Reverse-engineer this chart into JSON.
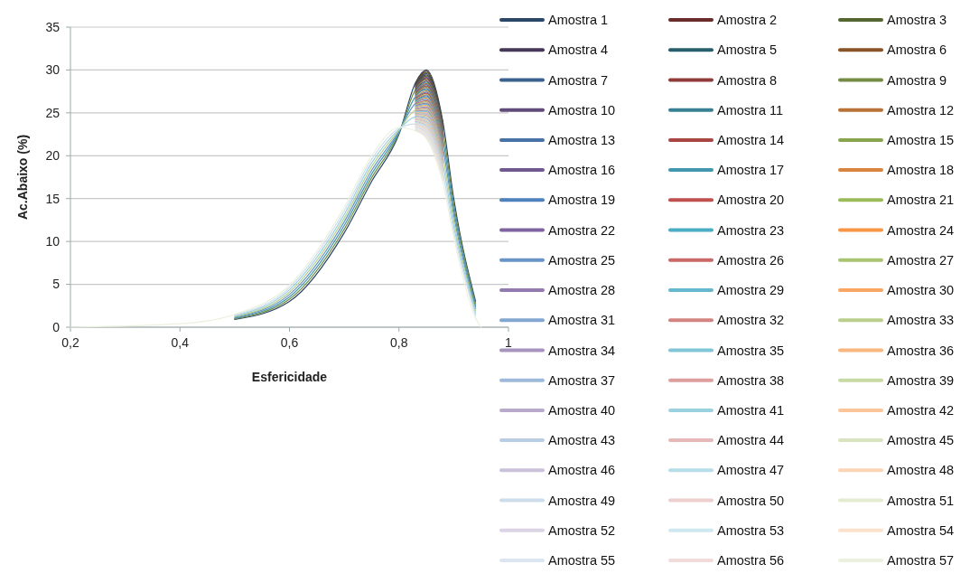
{
  "chart_data": {
    "type": "line",
    "xlabel": "Esfericidade",
    "ylabel": "Ac.Abaixo (%)",
    "x": [
      0.2,
      0.4,
      0.5,
      0.6,
      0.7,
      0.75,
      0.8,
      0.83,
      0.85,
      0.88,
      0.9,
      0.94,
      0.95
    ],
    "xlim": [
      0.2,
      1
    ],
    "xticks": [
      {
        "value": 0.2,
        "label": "0,2"
      },
      {
        "value": 0.4,
        "label": "0,4"
      },
      {
        "value": 0.6,
        "label": "0,6"
      },
      {
        "value": 0.8,
        "label": "0,8"
      },
      1
    ],
    "ylim": [
      0,
      35
    ],
    "yticks": [
      0,
      5,
      10,
      15,
      20,
      25,
      30,
      35
    ],
    "grid": "y",
    "legend": "right",
    "marker": "none",
    "line_style": "solid",
    "series": [
      {
        "name": "Amostra 1",
        "color": "#2b4768",
        "values": [
          null,
          null,
          0.9,
          3,
          11,
          17,
          22.5,
          28.5,
          30,
          24,
          15,
          3,
          null
        ]
      },
      {
        "name": "Amostra 2",
        "color": "#6a2c2a",
        "values": [
          null,
          null,
          null,
          null,
          null,
          null,
          null,
          28.4,
          29.86,
          23.88,
          null,
          null,
          null
        ]
      },
      {
        "name": "Amostra 3",
        "color": "#556731",
        "values": [
          null,
          null,
          null,
          null,
          null,
          null,
          null,
          28.3,
          29.71,
          23.75,
          null,
          null,
          null
        ]
      },
      {
        "name": "Amostra 4",
        "color": "#463759",
        "values": [
          null,
          null,
          null,
          null,
          null,
          null,
          null,
          28.2,
          29.57,
          23.63,
          null,
          null,
          null
        ]
      },
      {
        "name": "Amostra 5",
        "color": "#295f6d",
        "values": [
          null,
          null,
          null,
          null,
          null,
          null,
          null,
          28.1,
          29.43,
          23.5,
          null,
          null,
          null
        ]
      },
      {
        "name": "Amostra 6",
        "color": "#885327",
        "values": [
          null,
          null,
          null,
          null,
          null,
          null,
          null,
          28,
          29.29,
          23.38,
          null,
          null,
          null
        ]
      },
      {
        "name": "Amostra 7",
        "color": "#3b618e",
        "values": [
          null,
          null,
          null,
          null,
          null,
          null,
          null,
          27.9,
          29.14,
          23.25,
          null,
          null,
          null
        ]
      },
      {
        "name": "Amostra 8",
        "color": "#903c3a",
        "values": [
          null,
          null,
          null,
          null,
          null,
          null,
          null,
          27.8,
          29,
          23.13,
          null,
          null,
          null
        ]
      },
      {
        "name": "Amostra 9",
        "color": "#748c43",
        "values": [
          null,
          null,
          0.99,
          3.27,
          11.43,
          17.43,
          22.61,
          27.7,
          28.86,
          23,
          14.36,
          2.72,
          null
        ]
      },
      {
        "name": "Amostra 10",
        "color": "#604b7a",
        "values": [
          null,
          null,
          null,
          null,
          null,
          null,
          null,
          27.6,
          28.71,
          22.88,
          null,
          null,
          null
        ]
      },
      {
        "name": "Amostra 11",
        "color": "#388195",
        "values": [
          null,
          null,
          null,
          null,
          null,
          null,
          null,
          27.5,
          28.57,
          22.75,
          null,
          null,
          null
        ]
      },
      {
        "name": "Amostra 12",
        "color": "#b97135",
        "values": [
          null,
          null,
          null,
          null,
          null,
          null,
          null,
          27.4,
          28.43,
          22.63,
          null,
          null,
          null
        ]
      },
      {
        "name": "Amostra 13",
        "color": "#4672a6",
        "values": [
          null,
          null,
          null,
          null,
          null,
          null,
          null,
          27.3,
          28.29,
          22.5,
          null,
          null,
          null
        ]
      },
      {
        "name": "Amostra 14",
        "color": "#a94644",
        "values": [
          null,
          null,
          null,
          null,
          null,
          null,
          null,
          27.2,
          28.14,
          22.38,
          null,
          null,
          null
        ]
      },
      {
        "name": "Amostra 15",
        "color": "#88a54e",
        "values": [
          null,
          null,
          null,
          null,
          null,
          null,
          null,
          27.1,
          28,
          22.25,
          null,
          null,
          null
        ]
      },
      {
        "name": "Amostra 16",
        "color": "#71588f",
        "values": [
          null,
          null,
          null,
          null,
          null,
          null,
          null,
          27,
          27.86,
          22.13,
          null,
          null,
          null
        ]
      },
      {
        "name": "Amostra 17",
        "color": "#4297ae",
        "values": [
          null,
          null,
          1.07,
          3.54,
          11.86,
          17.86,
          22.73,
          26.9,
          27.71,
          22,
          13.72,
          2.44,
          null
        ]
      },
      {
        "name": "Amostra 18",
        "color": "#d9843e",
        "values": [
          null,
          null,
          null,
          null,
          null,
          null,
          null,
          26.8,
          27.57,
          21.88,
          null,
          null,
          null
        ]
      },
      {
        "name": "Amostra 19",
        "color": "#4f81bd",
        "values": [
          null,
          null,
          null,
          null,
          null,
          null,
          null,
          26.7,
          27.43,
          21.75,
          null,
          null,
          null
        ]
      },
      {
        "name": "Amostra 20",
        "color": "#c0504d",
        "values": [
          null,
          null,
          null,
          null,
          null,
          null,
          null,
          26.6,
          27.29,
          21.63,
          null,
          null,
          null
        ]
      },
      {
        "name": "Amostra 21",
        "color": "#9bbb59",
        "values": [
          null,
          null,
          null,
          null,
          null,
          null,
          null,
          26.5,
          27.14,
          21.5,
          null,
          null,
          null
        ]
      },
      {
        "name": "Amostra 22",
        "color": "#8064a2",
        "values": [
          null,
          null,
          null,
          null,
          null,
          null,
          null,
          26.4,
          27,
          21.38,
          null,
          null,
          null
        ]
      },
      {
        "name": "Amostra 23",
        "color": "#4bacc6",
        "values": [
          null,
          null,
          null,
          null,
          null,
          null,
          null,
          26.3,
          26.86,
          21.25,
          null,
          null,
          null
        ]
      },
      {
        "name": "Amostra 24",
        "color": "#f79646",
        "values": [
          null,
          null,
          null,
          null,
          null,
          null,
          null,
          26.2,
          26.71,
          21.13,
          null,
          null,
          null
        ]
      },
      {
        "name": "Amostra 25",
        "color": "#6994c7",
        "values": [
          null,
          null,
          1.16,
          3.81,
          12.29,
          18.29,
          22.84,
          26.1,
          26.57,
          21,
          13.08,
          2.16,
          null
        ]
      },
      {
        "name": "Amostra 26",
        "color": "#c96a68",
        "values": [
          null,
          null,
          null,
          null,
          null,
          null,
          null,
          26,
          26.43,
          20.88,
          null,
          null,
          null
        ]
      },
      {
        "name": "Amostra 27",
        "color": "#aac572",
        "values": [
          null,
          null,
          null,
          null,
          null,
          null,
          null,
          25.9,
          26.29,
          20.75,
          null,
          null,
          null
        ]
      },
      {
        "name": "Amostra 28",
        "color": "#937bb0",
        "values": [
          null,
          null,
          null,
          null,
          null,
          null,
          null,
          25.8,
          26.14,
          20.63,
          null,
          null,
          null
        ]
      },
      {
        "name": "Amostra 29",
        "color": "#66b8cf",
        "values": [
          null,
          null,
          null,
          null,
          null,
          null,
          null,
          25.7,
          26,
          20.5,
          null,
          null,
          null
        ]
      },
      {
        "name": "Amostra 30",
        "color": "#f8a662",
        "values": [
          null,
          null,
          null,
          null,
          null,
          null,
          null,
          25.6,
          25.86,
          20.38,
          null,
          null,
          null
        ]
      },
      {
        "name": "Amostra 31",
        "color": "#84a7d1",
        "values": [
          null,
          null,
          null,
          null,
          null,
          null,
          null,
          25.5,
          25.71,
          20.25,
          null,
          null,
          null
        ]
      },
      {
        "name": "Amostra 32",
        "color": "#d38582",
        "values": [
          null,
          null,
          null,
          null,
          null,
          null,
          null,
          25.4,
          25.57,
          20.13,
          null,
          null,
          null
        ]
      },
      {
        "name": "Amostra 33",
        "color": "#b9cf8b",
        "values": [
          null,
          null,
          1.24,
          4.08,
          12.72,
          18.72,
          22.96,
          25.3,
          25.43,
          20,
          12.44,
          1.88,
          null
        ]
      },
      {
        "name": "Amostra 34",
        "color": "#a693be",
        "values": [
          null,
          null,
          null,
          null,
          null,
          null,
          null,
          25.2,
          25.29,
          19.88,
          null,
          null,
          null
        ]
      },
      {
        "name": "Amostra 35",
        "color": "#81c5d7",
        "values": [
          null,
          null,
          null,
          null,
          null,
          null,
          null,
          25.1,
          25.14,
          19.75,
          null,
          null,
          null
        ]
      },
      {
        "name": "Amostra 36",
        "color": "#f9b67e",
        "values": [
          null,
          null,
          null,
          null,
          null,
          null,
          null,
          25,
          25,
          19.63,
          null,
          null,
          null
        ]
      },
      {
        "name": "Amostra 37",
        "color": "#9ebadb",
        "values": [
          null,
          null,
          null,
          null,
          null,
          null,
          null,
          24.9,
          24.86,
          19.5,
          null,
          null,
          null
        ]
      },
      {
        "name": "Amostra 38",
        "color": "#dc9f9e",
        "values": [
          null,
          null,
          null,
          null,
          null,
          null,
          null,
          24.8,
          24.71,
          19.38,
          null,
          null,
          null
        ]
      },
      {
        "name": "Amostra 39",
        "color": "#c8daa4",
        "values": [
          null,
          null,
          null,
          null,
          null,
          null,
          null,
          24.7,
          24.57,
          19.25,
          null,
          null,
          null
        ]
      },
      {
        "name": "Amostra 40",
        "color": "#b9aacc",
        "values": [
          null,
          null,
          null,
          null,
          null,
          null,
          null,
          24.6,
          24.43,
          19.13,
          null,
          null,
          null
        ]
      },
      {
        "name": "Amostra 41",
        "color": "#9cd1e0",
        "values": [
          null,
          null,
          1.33,
          4.36,
          13.14,
          19.14,
          23.07,
          24.5,
          24.29,
          19,
          11.8,
          1.6,
          null
        ]
      },
      {
        "name": "Amostra 42",
        "color": "#fbc599",
        "values": [
          null,
          null,
          null,
          null,
          null,
          null,
          null,
          24.4,
          24.14,
          18.88,
          null,
          null,
          null
        ]
      },
      {
        "name": "Amostra 43",
        "color": "#b9cde5",
        "values": [
          null,
          null,
          null,
          null,
          null,
          null,
          null,
          24.3,
          24,
          18.75,
          null,
          null,
          null
        ]
      },
      {
        "name": "Amostra 44",
        "color": "#e6b9b8",
        "values": [
          null,
          null,
          null,
          null,
          null,
          null,
          null,
          24.2,
          23.86,
          18.63,
          null,
          null,
          null
        ]
      },
      {
        "name": "Amostra 45",
        "color": "#d7e4bd",
        "values": [
          null,
          null,
          null,
          null,
          null,
          null,
          null,
          24.1,
          23.71,
          18.5,
          null,
          null,
          null
        ]
      },
      {
        "name": "Amostra 46",
        "color": "#ccc1da",
        "values": [
          null,
          null,
          null,
          null,
          null,
          null,
          null,
          24,
          23.57,
          18.38,
          null,
          null,
          null
        ]
      },
      {
        "name": "Amostra 47",
        "color": "#b7dee8",
        "values": [
          null,
          null,
          null,
          null,
          null,
          null,
          null,
          23.9,
          23.43,
          18.25,
          null,
          null,
          null
        ]
      },
      {
        "name": "Amostra 48",
        "color": "#fcd5b5",
        "values": [
          null,
          null,
          null,
          null,
          null,
          null,
          null,
          23.8,
          23.29,
          18.13,
          null,
          null,
          null
        ]
      },
      {
        "name": "Amostra 49",
        "color": "#ceddec",
        "values": [
          null,
          null,
          1.41,
          4.63,
          13.57,
          19.57,
          23.19,
          23.7,
          23.14,
          18,
          11.16,
          1.32,
          null
        ]
      },
      {
        "name": "Amostra 50",
        "color": "#edcfcd",
        "values": [
          null,
          null,
          null,
          null,
          null,
          null,
          null,
          23.6,
          23,
          17.88,
          null,
          null,
          null
        ]
      },
      {
        "name": "Amostra 51",
        "color": "#e3ecd1",
        "values": [
          null,
          null,
          null,
          null,
          null,
          null,
          null,
          23.5,
          22.86,
          17.75,
          null,
          null,
          null
        ]
      },
      {
        "name": "Amostra 52",
        "color": "#dbd4e5",
        "values": [
          null,
          null,
          null,
          null,
          null,
          null,
          null,
          23.4,
          22.71,
          17.63,
          null,
          null,
          null
        ]
      },
      {
        "name": "Amostra 53",
        "color": "#cde8ef",
        "values": [
          null,
          null,
          null,
          null,
          null,
          null,
          null,
          23.3,
          22.57,
          17.5,
          null,
          null,
          null
        ]
      },
      {
        "name": "Amostra 54",
        "color": "#fde2cb",
        "values": [
          null,
          null,
          null,
          null,
          null,
          null,
          null,
          23.2,
          22.43,
          17.38,
          null,
          null,
          null
        ]
      },
      {
        "name": "Amostra 55",
        "color": "#dce6f2",
        "values": [
          null,
          null,
          null,
          null,
          null,
          null,
          null,
          23.1,
          22.29,
          17.25,
          null,
          null,
          null
        ]
      },
      {
        "name": "Amostra 56",
        "color": "#f2dcdb",
        "values": [
          null,
          null,
          null,
          null,
          null,
          null,
          null,
          23,
          22.14,
          17.13,
          null,
          null,
          null
        ]
      },
      {
        "name": "Amostra 57",
        "color": "#ebf1de",
        "values": [
          0,
          0.4,
          1.5,
          4.9,
          14,
          20,
          23.3,
          22.9,
          22,
          17,
          10.52,
          1.04,
          0
        ]
      }
    ]
  }
}
